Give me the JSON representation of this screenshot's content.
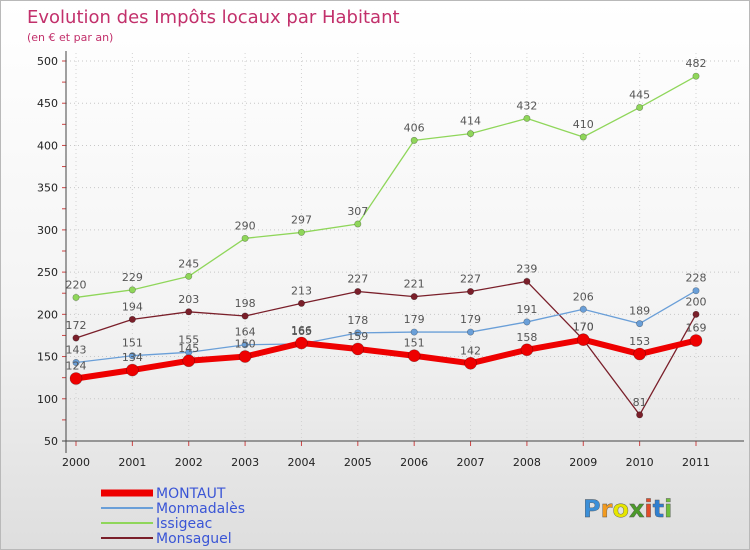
{
  "chart_data": {
    "type": "line",
    "title": "Evolution des Impôts locaux par Habitant",
    "subtitle": "(en € et par an)",
    "xlabel": "",
    "ylabel": "",
    "ylim": [
      50,
      500
    ],
    "yticks": [
      50,
      100,
      150,
      200,
      250,
      300,
      350,
      400,
      450,
      500
    ],
    "categories": [
      "2000",
      "2001",
      "2002",
      "2003",
      "2004",
      "2005",
      "2006",
      "2007",
      "2008",
      "2009",
      "2010",
      "2011"
    ],
    "series": [
      {
        "name": "Issigeac",
        "color": "#8fd65a",
        "values": [
          220,
          229,
          245,
          290,
          297,
          307,
          406,
          414,
          432,
          410,
          445,
          482
        ]
      },
      {
        "name": "Monsaguel",
        "color": "#7a1f2a",
        "values": [
          172,
          194,
          203,
          198,
          213,
          227,
          221,
          227,
          239,
          170,
          81,
          200
        ]
      },
      {
        "name": "Monmadalès",
        "color": "#6a9fd8",
        "values": [
          143,
          151,
          155,
          164,
          165,
          178,
          179,
          179,
          191,
          206,
          189,
          228
        ]
      },
      {
        "name": "MONTAUT",
        "color": "#ee0000",
        "values": [
          124,
          134,
          145,
          150,
          166,
          159,
          151,
          142,
          158,
          170,
          153,
          169
        ]
      }
    ],
    "legend": [
      "MONTAUT",
      "Monmadalès",
      "Issigeac",
      "Monsaguel"
    ],
    "legend_position": "bottom-left"
  },
  "brand": {
    "name": "Proxiti",
    "letters": [
      "P",
      "r",
      "o",
      "x",
      "i",
      "t",
      "i"
    ]
  }
}
